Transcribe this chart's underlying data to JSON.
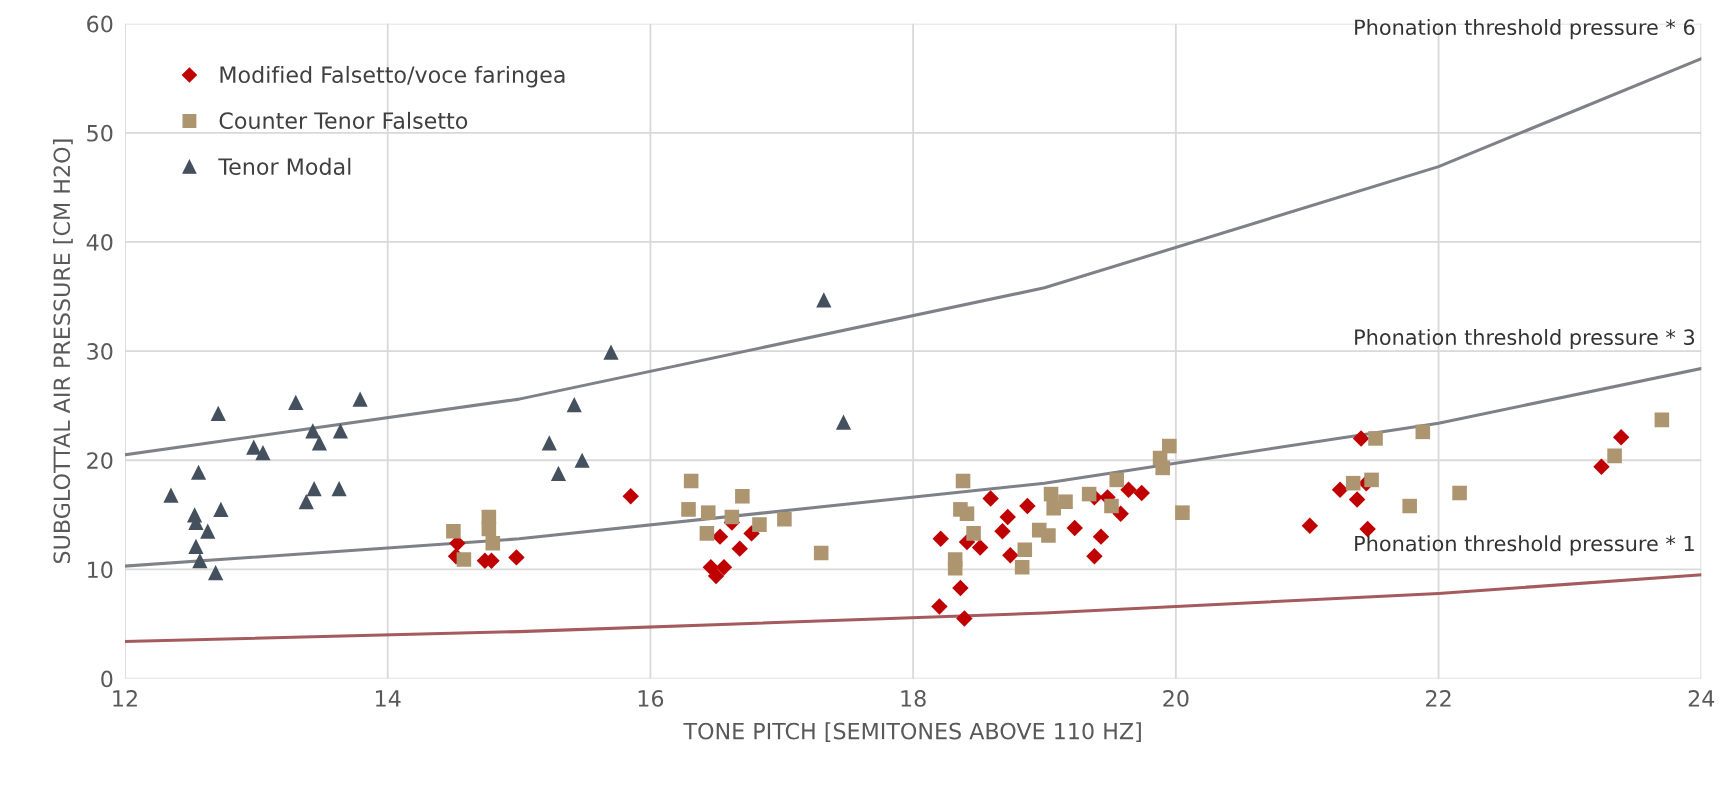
{
  "chart_data": {
    "type": "scatter",
    "xlabel": "TONE PITCH [SEMITONES ABOVE 110 HZ]",
    "ylabel": "SUBGLOTTAL AIR PRESSURE [CM H2O]",
    "xlim": [
      12,
      24
    ],
    "xticks": [
      12,
      14,
      16,
      18,
      20,
      22,
      24
    ],
    "ylim": [
      0,
      60
    ],
    "yticks": [
      0,
      10,
      20,
      30,
      40,
      50,
      60
    ],
    "grid": true,
    "legend": "top left",
    "series": [
      {
        "name": "Modified Falsetto/voce faringea",
        "marker": "diamond",
        "color": "#c00000",
        "x": [
          14.53,
          14.52,
          14.74,
          14.79,
          14.98,
          15.85,
          16.46,
          16.5,
          16.56,
          16.53,
          16.62,
          16.68,
          16.77,
          18.21,
          18.2,
          18.36,
          18.39,
          18.41,
          18.51,
          18.59,
          18.68,
          18.72,
          18.74,
          18.87,
          19.23,
          19.38,
          19.43,
          19.38,
          19.48,
          19.58,
          19.64,
          19.74,
          21.41,
          21.25,
          21.45,
          21.38,
          21.02,
          21.46,
          23.24,
          23.39
        ],
        "values": [
          12.4,
          11.2,
          10.8,
          10.8,
          11.1,
          16.7,
          10.2,
          9.4,
          10.2,
          13.0,
          14.3,
          11.9,
          13.3,
          12.8,
          6.6,
          8.3,
          5.5,
          12.5,
          12.0,
          16.5,
          13.5,
          14.8,
          11.3,
          15.8,
          13.8,
          11.2,
          13.0,
          16.6,
          16.6,
          15.1,
          17.3,
          17.0,
          22.0,
          17.3,
          17.9,
          16.4,
          14.0,
          13.7,
          19.4,
          22.1
        ]
      },
      {
        "name": "Counter Tenor Falsetto",
        "marker": "square",
        "color": "#ad9570",
        "x": [
          14.5,
          14.58,
          14.77,
          14.77,
          14.8,
          16.31,
          16.29,
          16.44,
          16.43,
          16.62,
          16.7,
          16.83,
          17.02,
          17.3,
          18.38,
          18.36,
          18.41,
          18.46,
          18.32,
          18.32,
          18.85,
          18.83,
          18.96,
          19.03,
          19.05,
          19.07,
          19.16,
          19.34,
          19.51,
          19.55,
          19.88,
          19.9,
          19.95,
          20.05,
          21.52,
          21.88,
          21.35,
          21.49,
          21.78,
          22.16,
          23.34,
          23.7
        ],
        "values": [
          13.5,
          10.9,
          14.8,
          13.7,
          12.4,
          18.1,
          15.5,
          15.2,
          13.3,
          14.8,
          16.7,
          14.1,
          14.6,
          11.5,
          18.1,
          15.5,
          15.1,
          13.3,
          10.9,
          10.1,
          11.8,
          10.2,
          13.6,
          13.1,
          16.9,
          15.6,
          16.2,
          16.9,
          15.8,
          18.2,
          20.2,
          19.3,
          21.3,
          15.2,
          22.0,
          22.6,
          17.9,
          18.2,
          15.8,
          17.0,
          20.4,
          23.7
        ]
      },
      {
        "name": "Tenor Modal",
        "marker": "triangle",
        "color": "#44505e",
        "x": [
          12.35,
          12.56,
          12.53,
          12.54,
          12.63,
          12.73,
          12.54,
          12.57,
          12.69,
          12.71,
          12.98,
          13.05,
          13.3,
          13.38,
          13.44,
          13.43,
          13.48,
          13.64,
          13.63,
          13.79,
          15.23,
          15.3,
          15.42,
          15.48,
          15.7,
          17.32,
          17.47
        ],
        "values": [
          16.8,
          18.9,
          15.0,
          14.3,
          13.5,
          15.5,
          12.1,
          10.8,
          9.7,
          24.3,
          21.2,
          20.7,
          25.3,
          16.2,
          17.4,
          22.7,
          21.6,
          22.7,
          17.4,
          25.6,
          21.6,
          18.8,
          25.1,
          20.0,
          29.9,
          34.7,
          23.5
        ]
      },
      {
        "name": "Phonation threshold pressure * 6",
        "type": "line",
        "marker": "none",
        "color": "#7f8188",
        "x": [
          12,
          15,
          19,
          22,
          24
        ],
        "values": [
          20.5,
          25.6,
          35.8,
          46.9,
          56.8
        ]
      },
      {
        "name": "Phonation threshold pressure * 3",
        "type": "line",
        "marker": "none",
        "color": "#7f8188",
        "x": [
          12,
          15,
          19,
          22,
          24
        ],
        "values": [
          10.3,
          12.8,
          17.9,
          23.4,
          28.4
        ]
      },
      {
        "name": "Phonation threshold pressure * 1",
        "type": "line",
        "marker": "none",
        "color": "#a55a5e",
        "x": [
          12,
          15,
          19,
          22,
          24
        ],
        "values": [
          3.4,
          4.3,
          6.0,
          7.8,
          9.5
        ]
      }
    ]
  }
}
